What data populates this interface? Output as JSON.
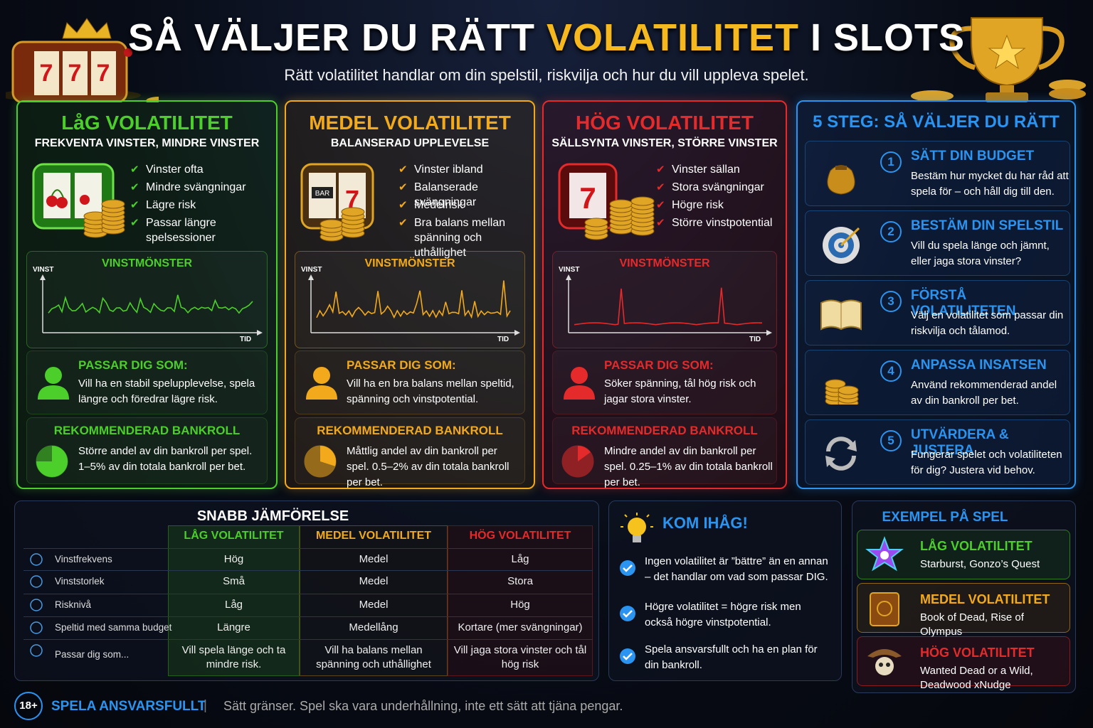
{
  "header": {
    "title_start": "SÅ VÄLJER DU RÄTT",
    "title_highlight": "VOLATILITET",
    "title_end": "I SLOTS",
    "subtitle": "Rätt volatilitet handlar om din spelstil, riskvilja och hur du vill uppleva spelet."
  },
  "volatility_columns": [
    {
      "title": "LåG VOLATILITET",
      "subtitle": "FREKVENTA VINSTER, MINDRE VINSTER",
      "bullets": [
        "Vinster ofta",
        "Mindre svängningar",
        "Lägre risk",
        "Passar längre spelsessioner"
      ],
      "chart_title": "VINSTMÖNSTER",
      "y_label": "VINST",
      "x_label": "TID",
      "fits_title": "PASSAR DIG SOM:",
      "fits_text": "Vill ha en stabil spelupplevelse, spela längre och föredrar lägre risk.",
      "bankroll_title": "REKOMMENDERAD BANKROLL",
      "bankroll_text": "Större andel av din bankroll per spel. 1–5% av din totala bankroll per bet."
    },
    {
      "title": "MEDEL VOLATILITET",
      "subtitle": "BALANSERAD UPPLEVELSE",
      "bullets": [
        "Vinster ibland",
        "Balanserade svängningar",
        "Medelrisk",
        "Bra balans mellan spänning och uthållighet"
      ],
      "chart_title": "VINSTMÖNSTER",
      "y_label": "VINST",
      "x_label": "TID",
      "fits_title": "PASSAR DIG SOM:",
      "fits_text": "Vill ha en bra balans mellan speltid, spänning och vinstpotential.",
      "bankroll_title": "REKOMMENDERAD BANKROLL",
      "bankroll_text": "Måttlig andel av din bankroll per spel. 0.5–2% av din totala bankroll per bet."
    },
    {
      "title": "HÖG VOLATILITET",
      "subtitle": "SÄLLSYNTA VINSTER, STÖRRE VINSTER",
      "bullets": [
        "Vinster sällan",
        "Stora svängningar",
        "Högre risk",
        "Större vinstpotential"
      ],
      "chart_title": "VINSTMÖNSTER",
      "y_label": "VINST",
      "x_label": "TID",
      "fits_title": "PASSAR DIG SOM:",
      "fits_text": "Söker spänning, tål hög risk och jagar stora vinster.",
      "bankroll_title": "REKOMMENDERAD BANKROLL",
      "bankroll_text": "Mindre andel av din bankroll per spel. 0.25–1% av din totala bankroll per bet."
    }
  ],
  "steps": {
    "title": "5 STEG: SÅ VÄLJER DU RÄTT",
    "items": [
      {
        "number": "1",
        "title": "SÄTT DIN BUDGET",
        "text": "Bestäm hur mycket du har råd att spela för – och håll dig till den."
      },
      {
        "number": "2",
        "title": "BESTÄM DIN SPELSTIL",
        "text": "Vill du spela länge och jämnt, eller jaga stora vinster?"
      },
      {
        "number": "3",
        "title": "FÖRSTÅ VOLATILITETEN",
        "text": "Välj en volatilitet som passar din riskvilja och tålamod."
      },
      {
        "number": "4",
        "title": "ANPASSA INSATSEN",
        "text": "Använd rekommenderad andel av din bankroll per bet."
      },
      {
        "number": "5",
        "title": "UTVÄRDERA & JUSTERA",
        "text": "Fungerar spelet och volatiliteten för dig? Justera vid behov."
      }
    ]
  },
  "comparison": {
    "title": "SNABB JÄMFÖRELSE",
    "columns": [
      "LÅG VOLATILITET",
      "MEDEL VOLATILITET",
      "HÖG VOLATILITET"
    ],
    "rows": [
      {
        "label": "Vinstfrekvens",
        "cells": [
          "Hög",
          "Medel",
          "Låg"
        ]
      },
      {
        "label": "Vinststorlek",
        "cells": [
          "Små",
          "Medel",
          "Stora"
        ]
      },
      {
        "label": "Risknivå",
        "cells": [
          "Låg",
          "Medel",
          "Hög"
        ]
      },
      {
        "label": "Speltid med samma budget",
        "cells": [
          "Längre",
          "Medellång",
          "Kortare (mer svängningar)"
        ]
      },
      {
        "label": "Passar dig som...",
        "cells": [
          "Vill spela länge och ta mindre risk.",
          "Vill ha balans mellan spänning och uthållighet",
          "Vill jaga stora vinster och tål hög risk"
        ]
      }
    ]
  },
  "remember": {
    "title": "KOM IHÅG!",
    "items": [
      "Ingen volatilitet är ”bättre” än en annan – det handlar om vad som passar DIG.",
      "Högre volatilitet = högre risk men också högre vinstpotential.",
      "Spela ansvarsfullt och ha en plan för din bankroll."
    ]
  },
  "examples": {
    "title": "EXEMPEL PÅ SPEL",
    "items": [
      {
        "title": "LÅG VOLATILITET",
        "text": "Starburst, Gonzo’s Quest"
      },
      {
        "title": "MEDEL VOLATILITET",
        "text": "Book of Dead, Rise of Olympus"
      },
      {
        "title": "HÖG VOLATILITET",
        "text": "Wanted Dead or a Wild, Deadwood xNudge"
      }
    ]
  },
  "footer": {
    "badge": "18+",
    "title": "SPELA ANSVARSFULLT",
    "separator": "|",
    "text": "Sätt gränser. Spel ska vara underhållning, inte ett sätt att tjäna pengar."
  }
}
